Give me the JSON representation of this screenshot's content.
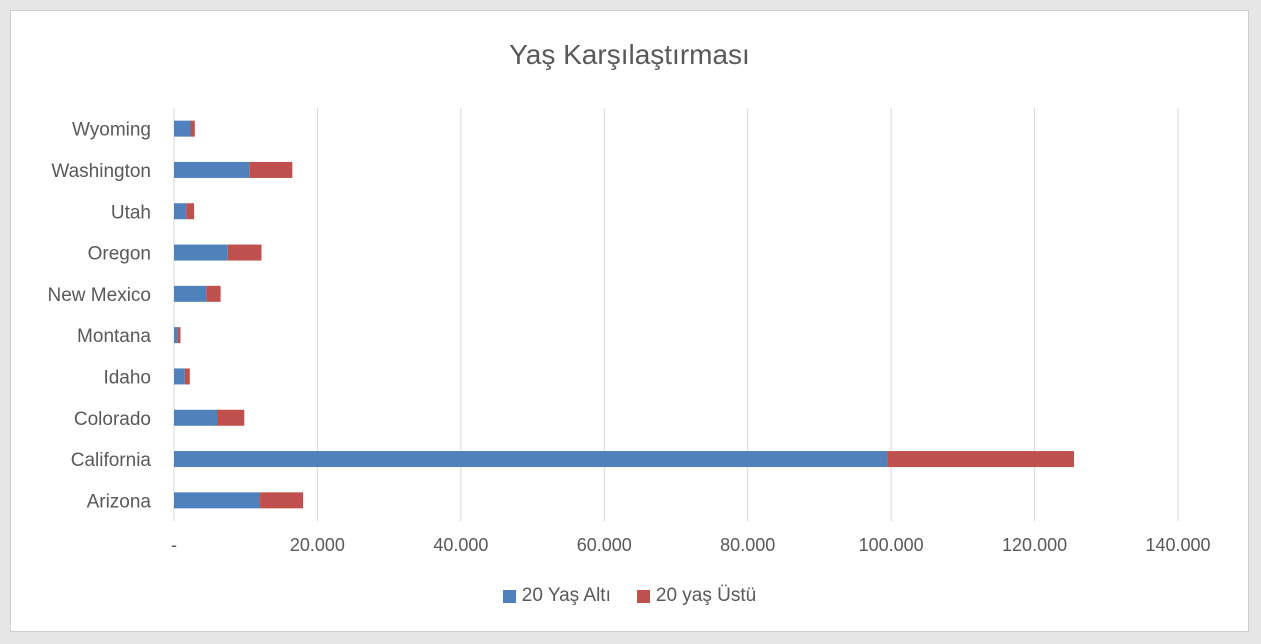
{
  "chart_data": {
    "type": "bar",
    "orientation": "horizontal",
    "stacked": true,
    "title": "Yaş Karşılaştırması",
    "categories": [
      "Arizona",
      "California",
      "Colorado",
      "Idaho",
      "Montana",
      "New Mexico",
      "Oregon",
      "Utah",
      "Washington",
      "Wyoming"
    ],
    "series": [
      {
        "name": "20 Yaş Altı",
        "color": "#4f81bd",
        "values": [
          12000,
          99500,
          6000,
          1500,
          500,
          4500,
          7500,
          1700,
          10500,
          2300
        ]
      },
      {
        "name": "20 yaş Üstü",
        "color": "#c0504d",
        "values": [
          6000,
          26000,
          3800,
          700,
          400,
          2000,
          4700,
          1100,
          6000,
          600
        ]
      }
    ],
    "xlim": [
      0,
      140000
    ],
    "x_ticks": [
      0,
      20000,
      40000,
      60000,
      80000,
      100000,
      120000,
      140000
    ],
    "x_tick_labels": [
      "-",
      "20.000",
      "40.000",
      "60.000",
      "80.000",
      "100.000",
      "120.000",
      "140.000"
    ],
    "grid": true,
    "legend_position": "bottom"
  }
}
